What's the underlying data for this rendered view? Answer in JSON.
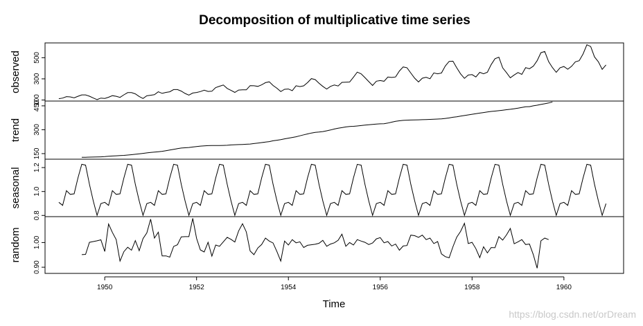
{
  "title": "Decomposition of multiplicative time series",
  "x_axis_label": "Time",
  "watermark": "https://blog.csdn.net/orDream",
  "chart_data": {
    "type": "line",
    "title": "Decomposition of multiplicative time series",
    "xlabel": "Time",
    "x_start": 1949,
    "x_frequency": 12,
    "xlim": [
      1948.7,
      1961.3
    ],
    "x_ticks": [
      1950,
      1952,
      1954,
      1956,
      1958,
      1960
    ],
    "x_tick_labels": [
      "1950",
      "1952",
      "1954",
      "1956",
      "1958",
      "1960"
    ],
    "grid": false,
    "panels": [
      {
        "name": "observed",
        "ylabel": "observed",
        "ylim": [
          90,
          640
        ],
        "y_ticks": [
          100,
          300,
          500
        ],
        "y_tick_labels": [
          "100",
          "300",
          "500"
        ],
        "x_start_index": 0,
        "values": [
          112,
          118,
          132,
          129,
          121,
          135,
          148,
          148,
          136,
          119,
          104,
          118,
          115,
          126,
          141,
          135,
          125,
          149,
          170,
          170,
          158,
          133,
          114,
          140,
          145,
          150,
          178,
          163,
          172,
          178,
          199,
          199,
          184,
          162,
          146,
          166,
          171,
          180,
          193,
          181,
          183,
          218,
          230,
          242,
          209,
          191,
          172,
          194,
          196,
          196,
          236,
          235,
          229,
          243,
          264,
          272,
          237,
          211,
          180,
          201,
          204,
          188,
          235,
          227,
          234,
          264,
          302,
          293,
          259,
          229,
          203,
          229,
          242,
          233,
          267,
          269,
          270,
          315,
          364,
          347,
          312,
          274,
          237,
          278,
          284,
          277,
          317,
          313,
          318,
          374,
          413,
          405,
          355,
          306,
          271,
          306,
          315,
          301,
          356,
          348,
          355,
          422,
          465,
          467,
          404,
          347,
          305,
          336,
          340,
          318,
          362,
          348,
          363,
          435,
          491,
          505,
          404,
          359,
          310,
          337,
          360,
          342,
          406,
          396,
          420,
          472,
          548,
          559,
          463,
          407,
          362,
          405,
          417,
          391,
          419,
          461,
          472,
          535,
          622,
          606,
          508,
          461,
          390,
          432
        ]
      },
      {
        "name": "trend",
        "ylabel": "trend",
        "ylim": [
          115,
          480
        ],
        "y_ticks": [
          150,
          300,
          450
        ],
        "y_tick_labels": [
          "150",
          "300",
          "450"
        ],
        "x_start_index": 6,
        "values": [
          126.79,
          127.25,
          127.96,
          128.58,
          129.0,
          129.75,
          131.25,
          133.08,
          134.92,
          136.42,
          137.42,
          138.75,
          140.92,
          143.17,
          145.71,
          148.42,
          151.54,
          154.71,
          157.12,
          159.54,
          161.83,
          164.75,
          168.25,
          172.46,
          176.83,
          181.04,
          185.0,
          186.62,
          188.5,
          191.5,
          194.5,
          197.25,
          198.5,
          200.0,
          200.75,
          201.17,
          201.25,
          201.5,
          202.5,
          204.58,
          205.75,
          206.54,
          207.54,
          208.75,
          210.21,
          213.38,
          216.25,
          219.12,
          222.42,
          225.17,
          230.42,
          234.17,
          238.17,
          242.67,
          247.04,
          251.25,
          255.67,
          262.0,
          267.88,
          273.79,
          279.42,
          283.17,
          285.12,
          288.38,
          293.12,
          298.54,
          304.5,
          309.62,
          313.25,
          317.42,
          320.12,
          321.54,
          323.67,
          326.33,
          329.21,
          331.08,
          333.29,
          335.62,
          337.25,
          337.88,
          341.92,
          347.54,
          352.54,
          356.04,
          358.62,
          359.92,
          360.79,
          361.33,
          362.21,
          363.12,
          364.17,
          365.04,
          365.62,
          366.83,
          368.5,
          370.75,
          373.96,
          378.17,
          381.5,
          385.88,
          389.33,
          393.04,
          396.92,
          400.75,
          404.25,
          407.79,
          411.17,
          414.67,
          417.12,
          419.75,
          422.5,
          425.5,
          428.33,
          431.92,
          435.25,
          440.12,
          444.08,
          445.0,
          449.83,
          454.08,
          458.58,
          463.08,
          467.92,
          474.41
        ]
      },
      {
        "name": "seasonal",
        "ylabel": "seasonal",
        "ylim": [
          0.79,
          1.27
        ],
        "y_ticks": [
          0.8,
          1.0,
          1.2
        ],
        "y_tick_labels": [
          "0.8",
          "1.0",
          "1.2"
        ],
        "x_start_index": 0,
        "values": [
          0.91,
          0.884,
          1.007,
          0.976,
          0.981,
          1.113,
          1.227,
          1.22,
          1.06,
          0.922,
          0.801,
          0.899,
          0.91,
          0.884,
          1.007,
          0.976,
          0.981,
          1.113,
          1.227,
          1.22,
          1.06,
          0.922,
          0.801,
          0.899,
          0.91,
          0.884,
          1.007,
          0.976,
          0.981,
          1.113,
          1.227,
          1.22,
          1.06,
          0.922,
          0.801,
          0.899,
          0.91,
          0.884,
          1.007,
          0.976,
          0.981,
          1.113,
          1.227,
          1.22,
          1.06,
          0.922,
          0.801,
          0.899,
          0.91,
          0.884,
          1.007,
          0.976,
          0.981,
          1.113,
          1.227,
          1.22,
          1.06,
          0.922,
          0.801,
          0.899,
          0.91,
          0.884,
          1.007,
          0.976,
          0.981,
          1.113,
          1.227,
          1.22,
          1.06,
          0.922,
          0.801,
          0.899,
          0.91,
          0.884,
          1.007,
          0.976,
          0.981,
          1.113,
          1.227,
          1.22,
          1.06,
          0.922,
          0.801,
          0.899,
          0.91,
          0.884,
          1.007,
          0.976,
          0.981,
          1.113,
          1.227,
          1.22,
          1.06,
          0.922,
          0.801,
          0.899,
          0.91,
          0.884,
          1.007,
          0.976,
          0.981,
          1.113,
          1.227,
          1.22,
          1.06,
          0.922,
          0.801,
          0.899,
          0.91,
          0.884,
          1.007,
          0.976,
          0.981,
          1.113,
          1.227,
          1.22,
          1.06,
          0.922,
          0.801,
          0.899,
          0.91,
          0.884,
          1.007,
          0.976,
          0.981,
          1.113,
          1.227,
          1.22,
          1.06,
          0.922,
          0.801,
          0.899,
          0.91,
          0.884,
          1.007,
          0.976,
          0.981,
          1.113,
          1.227,
          1.22,
          1.06,
          0.922,
          0.801,
          0.899
        ]
      },
      {
        "name": "random",
        "ylabel": "random",
        "ylim": [
          0.875,
          1.105
        ],
        "y_ticks": [
          0.9,
          1.0
        ],
        "y_tick_labels": [
          "0.90",
          "1.00"
        ],
        "x_start_index": 6,
        "values": [
          0.951,
          0.952,
          1.001,
          1.004,
          1.007,
          1.011,
          0.964,
          1.075,
          1.041,
          1.012,
          0.925,
          0.963,
          0.981,
          0.969,
          1.008,
          0.967,
          1.016,
          1.039,
          1.095,
          1.018,
          1.042,
          0.946,
          0.946,
          0.941,
          0.984,
          0.991,
          1.023,
          1.024,
          1.024,
          1.098,
          1.017,
          0.97,
          0.962,
          1.001,
          0.945,
          0.99,
          0.985,
          1.003,
          1.021,
          1.013,
          1.002,
          1.047,
          1.076,
          1.043,
          0.966,
          0.951,
          0.978,
          0.992,
          1.018,
          1.006,
          0.998,
          0.963,
          0.925,
          1.006,
          0.99,
          1.012,
          0.999,
          1.003,
          0.98,
          0.989,
          0.991,
          0.993,
          0.997,
          1.009,
          0.985,
          0.994,
          0.999,
          1.009,
          1.034,
          0.985,
          1.0,
          0.99,
          1.012,
          1.006,
          1.001,
          0.992,
          0.998,
          1.015,
          1.02,
          0.999,
          1.004,
          0.986,
          0.994,
          0.969,
          0.986,
          0.988,
          1.03,
          1.028,
          1.021,
          1.03,
          1.012,
          1.018,
          0.996,
          1.004,
          0.954,
          0.943,
          0.938,
          0.983,
          1.022,
          1.045,
          1.078,
          0.996,
          1.001,
          0.975,
          0.939,
          0.983,
          0.958,
          0.98,
          0.979,
          1.024,
          1.01,
          1.031,
          1.057,
          0.995,
          1.003,
          1.012,
          0.992,
          0.994,
          0.951,
          0.896,
          1.007,
          1.018,
          1.012
        ]
      }
    ]
  }
}
